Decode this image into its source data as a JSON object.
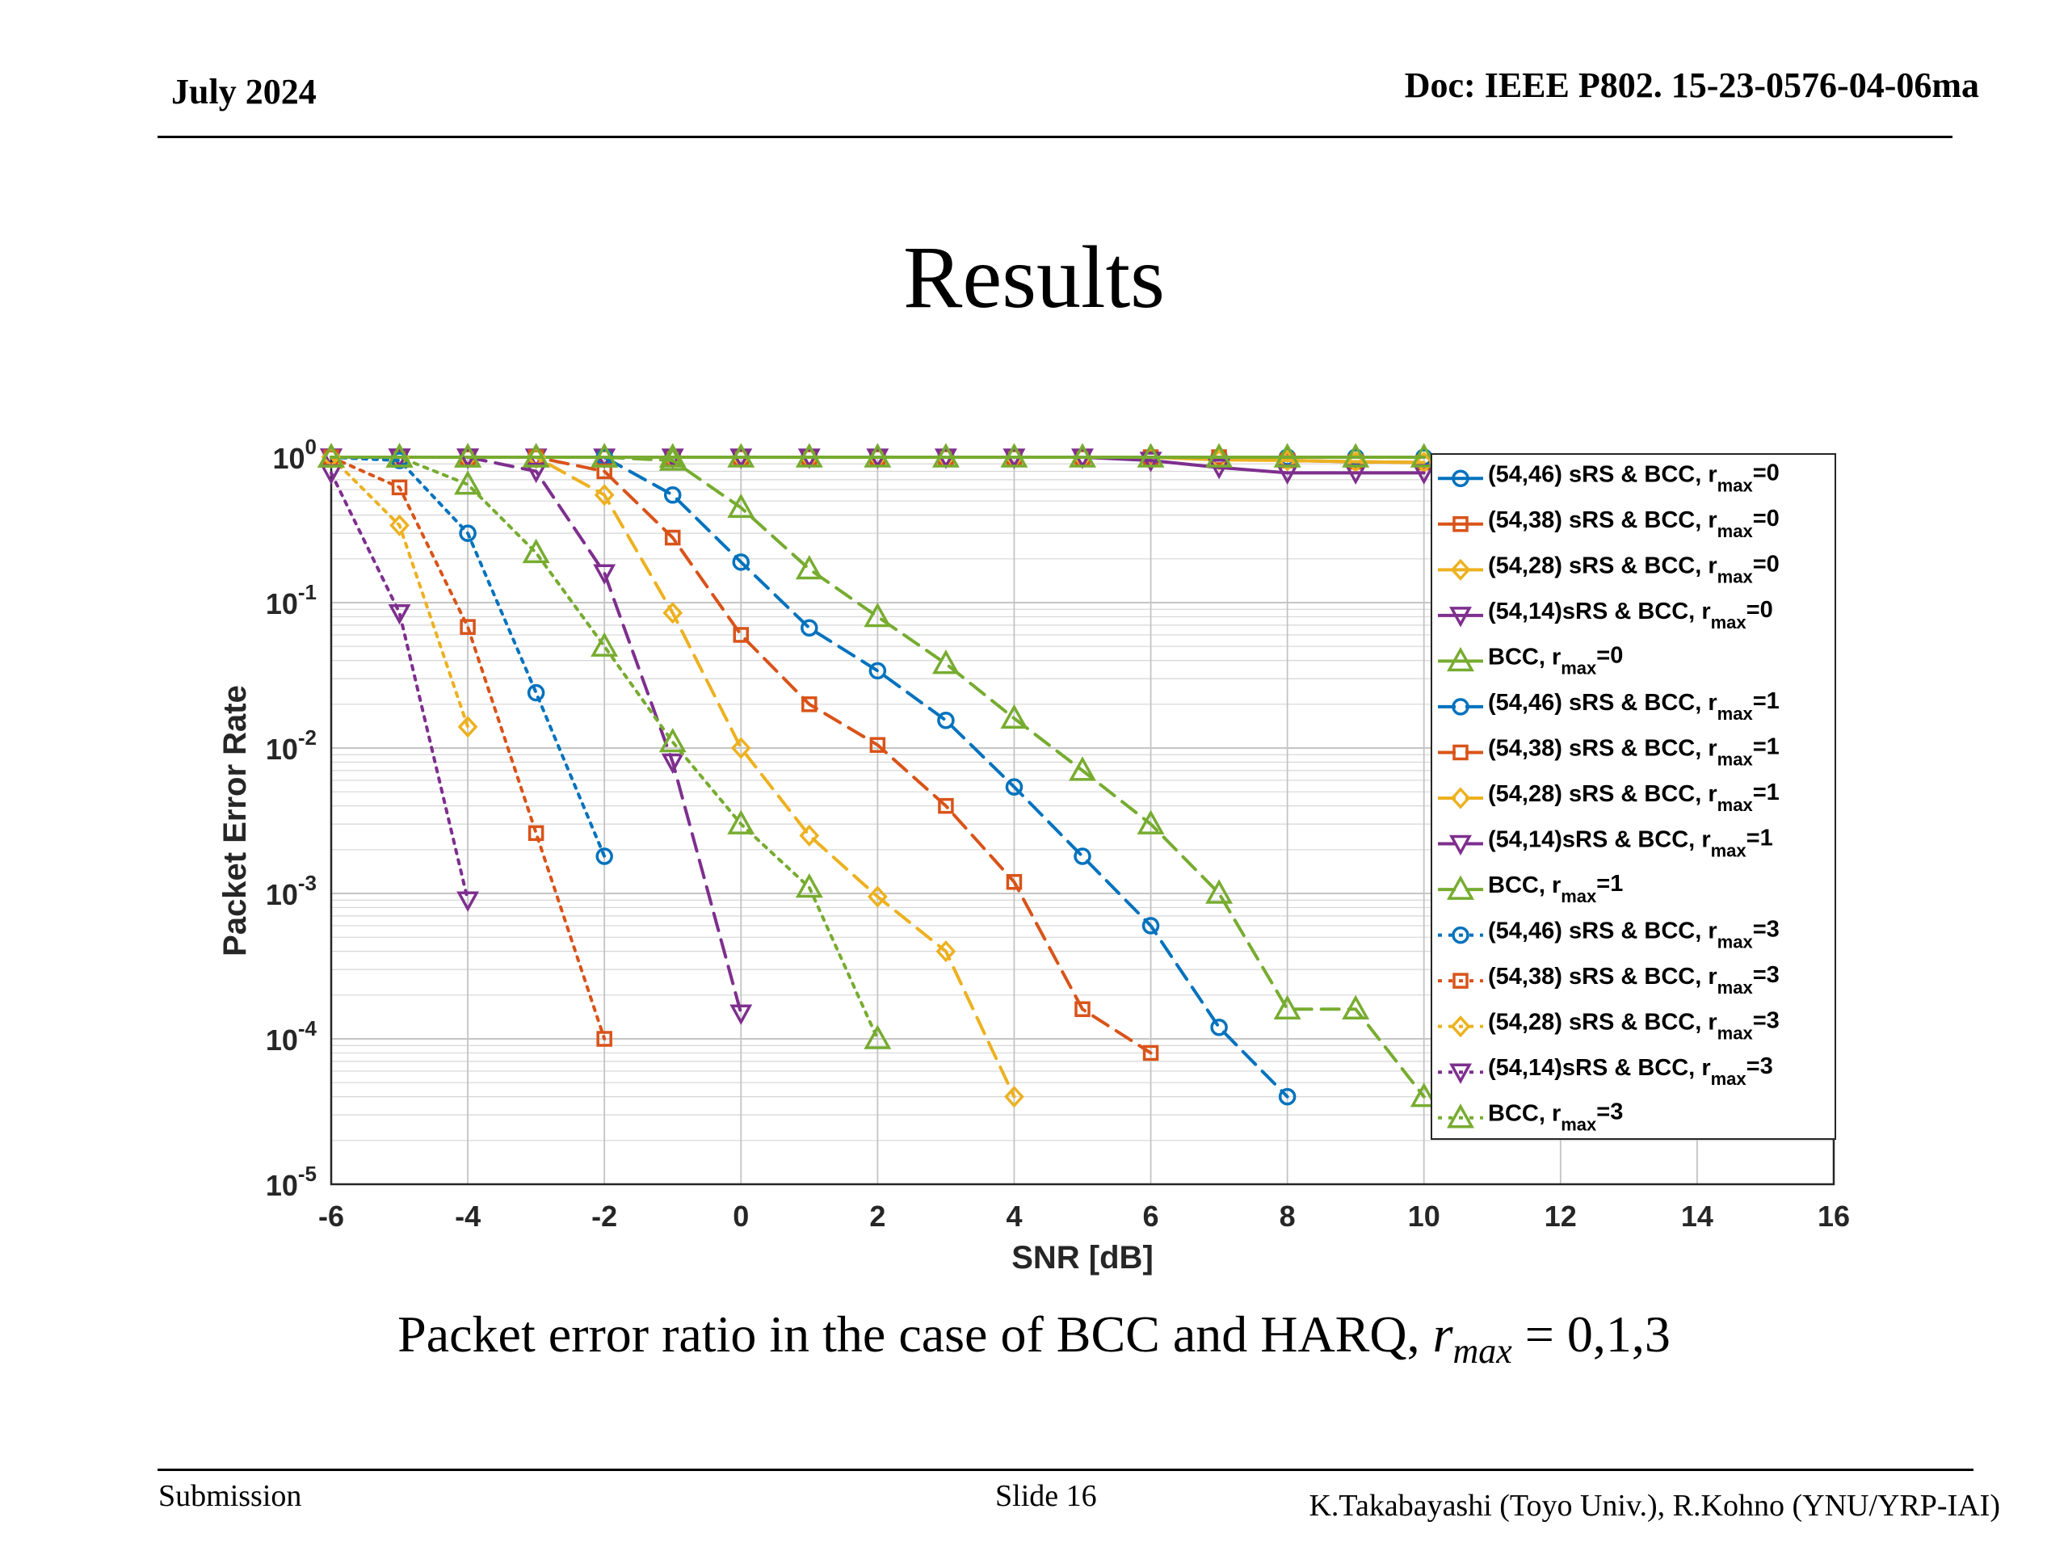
{
  "header": {
    "date": "July 2024",
    "doc": "Doc: IEEE P802. 15-23-0576-04-06ma"
  },
  "title": "Results",
  "caption": {
    "text": "Packet error ratio in the case of BCC and HARQ, ",
    "math_var": "r",
    "math_sub": "max",
    "math_rest": " = 0,1,3"
  },
  "footer": {
    "left": "Submission",
    "center": "Slide 16",
    "right": "K.Takabayashi (Toyo Univ.), R.Kohno (YNU/YRP-IAI)"
  },
  "chart_data": {
    "type": "line",
    "xlabel": "SNR [dB]",
    "ylabel": "Packet Error Rate",
    "xlim": [
      -6,
      16
    ],
    "ylim": [
      1e-05,
      1
    ],
    "yscale": "log",
    "xticks": [
      -6,
      -4,
      -2,
      0,
      2,
      4,
      6,
      8,
      10,
      12,
      14,
      16
    ],
    "yticks": [
      {
        "base": "10",
        "exp": "0"
      },
      {
        "base": "10",
        "exp": "-1"
      },
      {
        "base": "10",
        "exp": "-2"
      },
      {
        "base": "10",
        "exp": "-3"
      },
      {
        "base": "10",
        "exp": "-4"
      },
      {
        "base": "10",
        "exp": "-5"
      }
    ],
    "grid": true,
    "legend_position": "top-right",
    "colors": {
      "blue": "#0072BD",
      "orange": "#D95319",
      "yellow": "#EDB120",
      "purple": "#7E2F8E",
      "green": "#77AC30"
    },
    "series": [
      {
        "name": "(54,46) sRS & BCC, ",
        "sub": "max",
        "val": "=0",
        "color": "#0072BD",
        "marker": "circle",
        "dash": "solid",
        "x": [
          -6,
          -5,
          -4,
          -3,
          -2,
          -1,
          0,
          1,
          2,
          3,
          4,
          5,
          6,
          7,
          8,
          9,
          10
        ],
        "y": [
          1,
          1,
          1,
          1,
          1,
          1,
          1,
          1,
          1,
          1,
          1,
          1,
          1,
          1,
          1,
          1,
          1
        ]
      },
      {
        "name": "(54,38) sRS & BCC, ",
        "sub": "max",
        "val": "=0",
        "color": "#D95319",
        "marker": "square",
        "dash": "solid",
        "x": [
          -6,
          -5,
          -4,
          -3,
          -2,
          -1,
          0,
          1,
          2,
          3,
          4,
          5,
          6,
          7,
          8,
          9,
          10
        ],
        "y": [
          1,
          1,
          1,
          1,
          1,
          1,
          1,
          1,
          1,
          1,
          1,
          1,
          1,
          1,
          0.95,
          0.93,
          0.92
        ]
      },
      {
        "name": "(54,28) sRS & BCC, ",
        "sub": "max",
        "val": "=0",
        "color": "#EDB120",
        "marker": "diamond",
        "dash": "solid",
        "x": [
          -6,
          -5,
          -4,
          -3,
          -2,
          -1,
          0,
          1,
          2,
          3,
          4,
          5,
          6,
          7,
          8,
          9,
          10
        ],
        "y": [
          1,
          1,
          1,
          1,
          1,
          1,
          1,
          1,
          1,
          1,
          1,
          1,
          1,
          0.96,
          0.95,
          0.93,
          0.92
        ]
      },
      {
        "name": "(54,14)sRS & BCC, ",
        "sub": "max",
        "val": "=0",
        "color": "#7E2F8E",
        "marker": "triangle-down",
        "dash": "solid",
        "x": [
          -6,
          -5,
          -4,
          -3,
          -2,
          -1,
          0,
          1,
          2,
          3,
          4,
          5,
          6,
          7,
          8,
          9,
          10
        ],
        "y": [
          1,
          1,
          1,
          1,
          1,
          1,
          1,
          1,
          1,
          1,
          1,
          1,
          0.95,
          0.85,
          0.78,
          0.78,
          0.78
        ]
      },
      {
        "name": "BCC, ",
        "sub": "max",
        "val": "=0",
        "color": "#77AC30",
        "marker": "triangle-up",
        "dash": "solid",
        "x": [
          -6,
          -5,
          -4,
          -3,
          -2,
          -1,
          0,
          1,
          2,
          3,
          4,
          5,
          6,
          7,
          8,
          9,
          10
        ],
        "y": [
          1,
          1,
          1,
          1,
          1,
          1,
          1,
          1,
          1,
          1,
          1,
          1,
          1,
          1,
          1,
          1,
          1
        ]
      },
      {
        "name": "(54,46) sRS & BCC, ",
        "sub": "max",
        "val": "=1",
        "color": "#0072BD",
        "marker": "circle",
        "dash": "dash",
        "x": [
          -6,
          -5,
          -4,
          -3,
          -2,
          -1,
          0,
          1,
          2,
          3,
          4,
          5,
          6,
          7,
          8
        ],
        "y": [
          1,
          1,
          1,
          1,
          1,
          0.55,
          0.19,
          0.067,
          0.034,
          0.0155,
          0.0054,
          0.0018,
          0.0006,
          0.00012,
          4e-05
        ]
      },
      {
        "name": "(54,38) sRS & BCC, ",
        "sub": "max",
        "val": "=1",
        "color": "#D95319",
        "marker": "square",
        "dash": "dash",
        "x": [
          -6,
          -5,
          -4,
          -3,
          -2,
          -1,
          0,
          1,
          2,
          3,
          4,
          5,
          6
        ],
        "y": [
          1,
          1,
          1,
          1,
          0.8,
          0.28,
          0.06,
          0.02,
          0.0105,
          0.004,
          0.0012,
          0.00016,
          8e-05
        ]
      },
      {
        "name": "(54,28) sRS & BCC, ",
        "sub": "max",
        "val": "=1",
        "color": "#EDB120",
        "marker": "diamond",
        "dash": "dash",
        "x": [
          -6,
          -5,
          -4,
          -3,
          -2,
          -1,
          0,
          1,
          2,
          3,
          4
        ],
        "y": [
          1,
          1,
          1,
          1,
          0.55,
          0.085,
          0.01,
          0.0025,
          0.00095,
          0.0004,
          4e-05
        ]
      },
      {
        "name": "(54,14)sRS & BCC, ",
        "sub": "max",
        "val": "=1",
        "color": "#7E2F8E",
        "marker": "triangle-down",
        "dash": "dash",
        "x": [
          -6,
          -5,
          -4,
          -3,
          -2,
          -1,
          0
        ],
        "y": [
          1,
          1,
          1,
          0.8,
          0.16,
          0.008,
          0.00015
        ]
      },
      {
        "name": "BCC, ",
        "sub": "max",
        "val": "=1",
        "color": "#77AC30",
        "marker": "triangle-up",
        "dash": "dash",
        "x": [
          -6,
          -5,
          -4,
          -3,
          -2,
          -1,
          0,
          1,
          2,
          3,
          4,
          5,
          6,
          7,
          8,
          9,
          10
        ],
        "y": [
          1,
          1,
          1,
          1,
          1,
          0.95,
          0.45,
          0.17,
          0.08,
          0.038,
          0.016,
          0.007,
          0.003,
          0.001,
          0.00016,
          0.00016,
          4e-05
        ]
      },
      {
        "name": "(54,46) sRS & BCC, ",
        "sub": "max",
        "val": "=3",
        "color": "#0072BD",
        "marker": "circle",
        "dash": "dot",
        "x": [
          -6,
          -5,
          -4,
          -3,
          -2
        ],
        "y": [
          1,
          0.95,
          0.3,
          0.024,
          0.0018
        ]
      },
      {
        "name": "(54,38) sRS & BCC, ",
        "sub": "max",
        "val": "=3",
        "color": "#D95319",
        "marker": "square",
        "dash": "dot",
        "x": [
          -6,
          -5,
          -4,
          -3,
          -2
        ],
        "y": [
          1,
          0.62,
          0.068,
          0.0026,
          0.0001
        ]
      },
      {
        "name": "(54,28) sRS & BCC, ",
        "sub": "max",
        "val": "=3",
        "color": "#EDB120",
        "marker": "diamond",
        "dash": "dot",
        "x": [
          -6,
          -5,
          -4
        ],
        "y": [
          1,
          0.34,
          0.014
        ]
      },
      {
        "name": "(54,14)sRS & BCC, ",
        "sub": "max",
        "val": "=3",
        "color": "#7E2F8E",
        "marker": "triangle-down",
        "dash": "dot",
        "x": [
          -6,
          -5,
          -4
        ],
        "y": [
          0.78,
          0.085,
          0.0009
        ]
      },
      {
        "name": "BCC, ",
        "sub": "max",
        "val": "=3",
        "color": "#77AC30",
        "marker": "triangle-up",
        "dash": "dot",
        "x": [
          -6,
          -5,
          -4,
          -3,
          -2,
          -1,
          0,
          1,
          2
        ],
        "y": [
          1,
          1,
          0.65,
          0.22,
          0.05,
          0.011,
          0.003,
          0.0011,
          0.0001
        ]
      }
    ]
  }
}
